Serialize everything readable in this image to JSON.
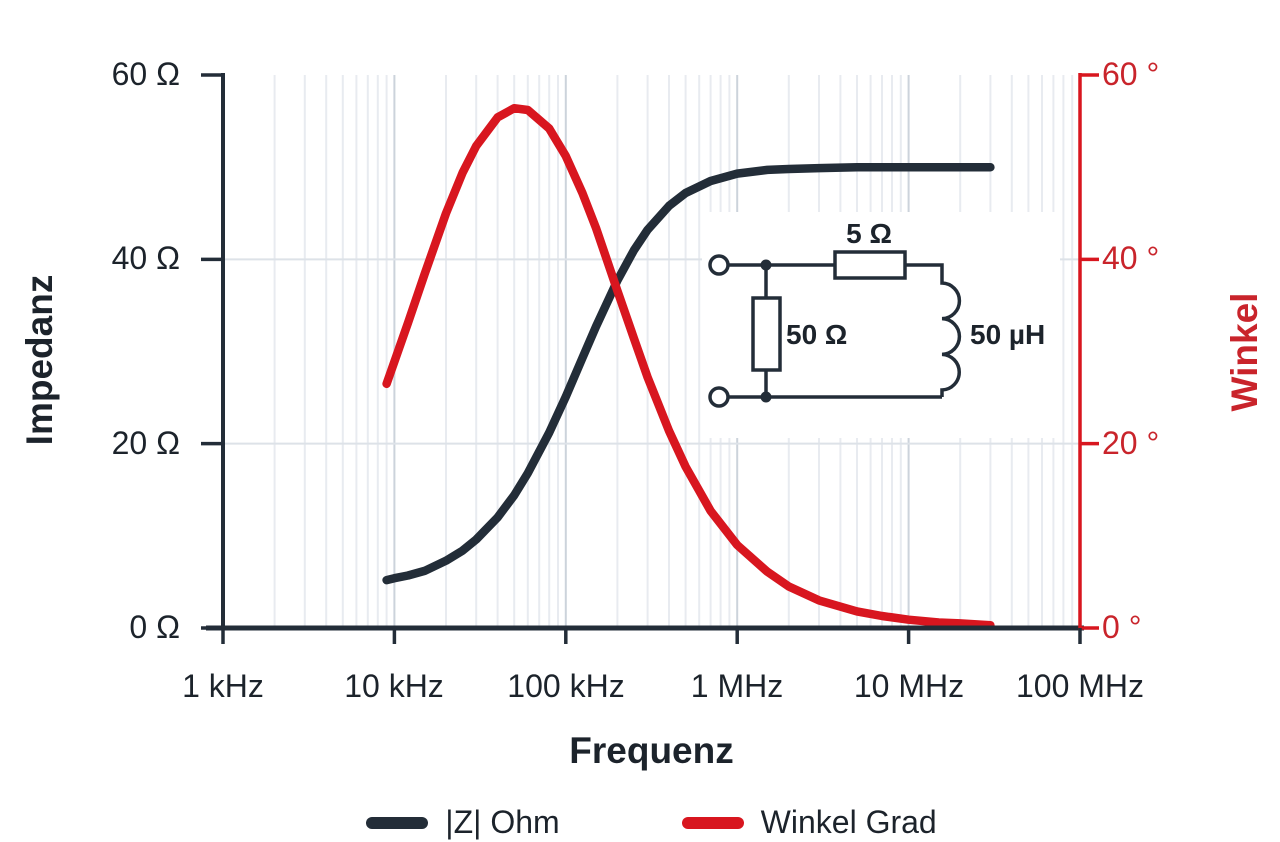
{
  "colors": {
    "impedance": "#232d38",
    "angle": "#d8161f",
    "text_dark": "#1c232b",
    "text_red": "#c9242b",
    "grid_minor": "#e8ebf0",
    "grid_major": "#ccd3db",
    "grid_horizontal": "#dde2e8",
    "background": "#ffffff"
  },
  "chart_data": {
    "type": "line",
    "x_scale": "log",
    "xlabel": "Frequenz",
    "x_range_khz": [
      1,
      100000
    ],
    "x_ticks": [
      {
        "khz": 1,
        "label": "1 kHz"
      },
      {
        "khz": 10,
        "label": "10 kHz"
      },
      {
        "khz": 100,
        "label": "100 kHz"
      },
      {
        "khz": 1000,
        "label": "1 MHz"
      },
      {
        "khz": 10000,
        "label": "10 MHz"
      },
      {
        "khz": 100000,
        "label": "100 MHz"
      }
    ],
    "y_left": {
      "label": "Impedanz",
      "unit": "Ω",
      "range": [
        0,
        60
      ],
      "ticks": [
        {
          "value": 0,
          "label": "0 Ω"
        },
        {
          "value": 20,
          "label": "20 Ω"
        },
        {
          "value": 40,
          "label": "40 Ω"
        },
        {
          "value": 60,
          "label": "60 Ω"
        }
      ]
    },
    "y_right": {
      "label": "Winkel",
      "unit": "°",
      "range": [
        0,
        60
      ],
      "ticks": [
        {
          "value": 0,
          "label": "0 °"
        },
        {
          "value": 20,
          "label": "20 °"
        },
        {
          "value": 40,
          "label": "40 °"
        },
        {
          "value": 60,
          "label": "60 °"
        }
      ]
    },
    "legend": [
      {
        "label": "|Z| Ohm",
        "color": "#232d38"
      },
      {
        "label": "Winkel Grad",
        "color": "#d8161f"
      }
    ],
    "series": [
      {
        "name": "|Z| Ohm",
        "axis": "left",
        "color": "#232d38",
        "freq_khz": [
          9,
          10,
          12,
          15,
          20,
          25,
          30,
          40,
          50,
          60,
          80,
          100,
          125,
          150,
          200,
          250,
          300,
          400,
          500,
          700,
          1000,
          1500,
          2000,
          3000,
          5000,
          7000,
          10000,
          15000,
          20000,
          30000
        ],
        "values": [
          5.2,
          5.4,
          5.7,
          6.2,
          7.3,
          8.4,
          9.6,
          12.0,
          14.4,
          16.8,
          21.2,
          25.1,
          29.3,
          32.7,
          37.7,
          41.0,
          43.2,
          45.8,
          47.2,
          48.5,
          49.3,
          49.7,
          49.8,
          49.9,
          50.0,
          50.0,
          50.0,
          50.0,
          50.0,
          50.0
        ]
      },
      {
        "name": "Winkel Grad",
        "axis": "right",
        "color": "#d8161f",
        "freq_khz": [
          9,
          10,
          12,
          15,
          20,
          25,
          30,
          40,
          50,
          60,
          80,
          100,
          125,
          150,
          200,
          250,
          300,
          400,
          500,
          700,
          1000,
          1500,
          2000,
          3000,
          5000,
          7000,
          10000,
          15000,
          20000,
          30000
        ],
        "values": [
          26.5,
          28.9,
          33.1,
          38.4,
          45.0,
          49.4,
          52.3,
          55.4,
          56.4,
          56.2,
          54.2,
          51.2,
          47.2,
          43.4,
          36.6,
          31.4,
          27.2,
          21.4,
          17.5,
          12.7,
          9.0,
          6.1,
          4.5,
          3.0,
          1.8,
          1.3,
          0.9,
          0.6,
          0.5,
          0.3
        ]
      }
    ]
  },
  "circuit": {
    "series_resistor_label": "5 Ω",
    "shunt_resistor_label": "50 Ω",
    "inductor_label": "50 µH"
  }
}
